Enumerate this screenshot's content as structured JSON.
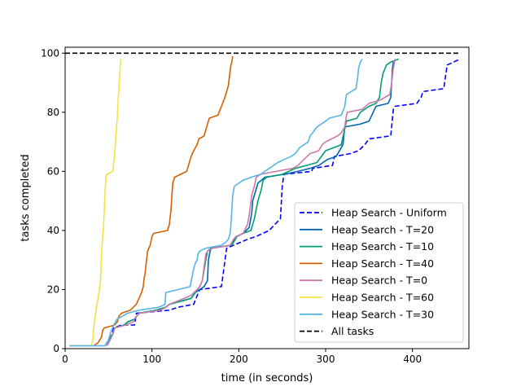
{
  "chart_data": {
    "type": "line",
    "xlabel": "time (in seconds)",
    "ylabel": "tasks completed",
    "xlim": [
      0,
      465
    ],
    "ylim": [
      0,
      102
    ],
    "xticks": [
      0,
      100,
      200,
      300,
      400
    ],
    "yticks": [
      0,
      20,
      40,
      60,
      80,
      100
    ],
    "grid": false,
    "legend_position": "lower-right",
    "series": [
      {
        "name": "Heap Search - Uniform",
        "color": "#0000ff",
        "dash": "dashed",
        "points": [
          [
            48,
            1
          ],
          [
            52,
            3
          ],
          [
            56,
            7
          ],
          [
            65,
            8
          ],
          [
            80,
            8
          ],
          [
            82,
            12
          ],
          [
            120,
            13
          ],
          [
            130,
            14
          ],
          [
            148,
            15
          ],
          [
            155,
            20
          ],
          [
            180,
            21
          ],
          [
            186,
            34
          ],
          [
            210,
            37
          ],
          [
            220,
            38
          ],
          [
            235,
            40
          ],
          [
            248,
            44
          ],
          [
            250,
            55
          ],
          [
            252,
            59
          ],
          [
            284,
            60
          ],
          [
            285,
            61
          ],
          [
            308,
            62
          ],
          [
            310,
            65
          ],
          [
            328,
            66
          ],
          [
            338,
            67
          ],
          [
            345,
            69
          ],
          [
            350,
            71
          ],
          [
            375,
            72
          ],
          [
            378,
            81
          ],
          [
            380,
            82
          ],
          [
            405,
            83
          ],
          [
            410,
            85
          ],
          [
            412,
            87
          ],
          [
            436,
            88
          ],
          [
            438,
            92
          ],
          [
            440,
            96
          ],
          [
            455,
            98
          ]
        ]
      },
      {
        "name": "Heap Search - T=20",
        "color": "#0066b3",
        "dash": "solid",
        "points": [
          [
            48,
            1
          ],
          [
            50,
            2
          ],
          [
            52,
            4
          ],
          [
            55,
            5
          ],
          [
            57,
            7
          ],
          [
            68,
            8
          ],
          [
            72,
            9
          ],
          [
            80,
            10
          ],
          [
            85,
            12
          ],
          [
            105,
            13
          ],
          [
            116,
            14
          ],
          [
            120,
            15
          ],
          [
            145,
            17
          ],
          [
            150,
            19
          ],
          [
            155,
            20
          ],
          [
            160,
            21
          ],
          [
            164,
            23
          ],
          [
            165,
            30
          ],
          [
            167,
            33
          ],
          [
            168,
            34
          ],
          [
            192,
            35
          ],
          [
            195,
            37
          ],
          [
            198,
            38
          ],
          [
            205,
            39
          ],
          [
            212,
            41
          ],
          [
            215,
            46
          ],
          [
            216,
            50
          ],
          [
            218,
            52
          ],
          [
            220,
            54
          ],
          [
            222,
            56
          ],
          [
            226,
            57
          ],
          [
            230,
            58
          ],
          [
            252,
            59
          ],
          [
            268,
            60
          ],
          [
            282,
            61
          ],
          [
            292,
            62
          ],
          [
            302,
            64
          ],
          [
            312,
            65
          ],
          [
            320,
            69
          ],
          [
            322,
            75
          ],
          [
            340,
            76
          ],
          [
            350,
            77
          ],
          [
            358,
            82
          ],
          [
            372,
            83
          ],
          [
            375,
            85
          ],
          [
            376,
            90
          ],
          [
            377,
            95
          ],
          [
            378,
            97
          ]
        ]
      },
      {
        "name": "Heap Search - T=10",
        "color": "#009e73",
        "dash": "solid",
        "points": [
          [
            46,
            1
          ],
          [
            48,
            2
          ],
          [
            52,
            4
          ],
          [
            55,
            5
          ],
          [
            57,
            7
          ],
          [
            68,
            8
          ],
          [
            72,
            9
          ],
          [
            80,
            10
          ],
          [
            85,
            12
          ],
          [
            105,
            13
          ],
          [
            116,
            14
          ],
          [
            120,
            15
          ],
          [
            145,
            17
          ],
          [
            155,
            21
          ],
          [
            158,
            23
          ],
          [
            162,
            30
          ],
          [
            164,
            33
          ],
          [
            168,
            34
          ],
          [
            192,
            35
          ],
          [
            196,
            37
          ],
          [
            198,
            38
          ],
          [
            205,
            39
          ],
          [
            214,
            40
          ],
          [
            218,
            44
          ],
          [
            222,
            50
          ],
          [
            226,
            54
          ],
          [
            228,
            57
          ],
          [
            232,
            58
          ],
          [
            250,
            59
          ],
          [
            265,
            61
          ],
          [
            278,
            62
          ],
          [
            290,
            63
          ],
          [
            300,
            67
          ],
          [
            318,
            69
          ],
          [
            324,
            77
          ],
          [
            336,
            78
          ],
          [
            340,
            80
          ],
          [
            350,
            82
          ],
          [
            358,
            83
          ],
          [
            362,
            85
          ],
          [
            364,
            90
          ],
          [
            366,
            93
          ],
          [
            370,
            96
          ],
          [
            375,
            97
          ],
          [
            384,
            98
          ]
        ]
      },
      {
        "name": "Heap Search - T=40",
        "color": "#d55e00",
        "dash": "solid",
        "points": [
          [
            33,
            1
          ],
          [
            38,
            2
          ],
          [
            40,
            3
          ],
          [
            42,
            4
          ],
          [
            43,
            6
          ],
          [
            45,
            7
          ],
          [
            57,
            8
          ],
          [
            60,
            9
          ],
          [
            62,
            11
          ],
          [
            65,
            12
          ],
          [
            75,
            13
          ],
          [
            82,
            15
          ],
          [
            88,
            19
          ],
          [
            90,
            21
          ],
          [
            91,
            24
          ],
          [
            92,
            25
          ],
          [
            93,
            28
          ],
          [
            95,
            33
          ],
          [
            98,
            35
          ],
          [
            100,
            38
          ],
          [
            102,
            39
          ],
          [
            118,
            40
          ],
          [
            120,
            42
          ],
          [
            122,
            47
          ],
          [
            123,
            52
          ],
          [
            124,
            56
          ],
          [
            126,
            58
          ],
          [
            140,
            60
          ],
          [
            142,
            62
          ],
          [
            145,
            65
          ],
          [
            148,
            67
          ],
          [
            152,
            69
          ],
          [
            154,
            71
          ],
          [
            160,
            72
          ],
          [
            162,
            74
          ],
          [
            164,
            76
          ],
          [
            166,
            78
          ],
          [
            176,
            79
          ],
          [
            180,
            82
          ],
          [
            184,
            85
          ],
          [
            186,
            87
          ],
          [
            188,
            89
          ],
          [
            190,
            94
          ],
          [
            191,
            96
          ],
          [
            192,
            97
          ],
          [
            193,
            99
          ]
        ]
      },
      {
        "name": "Heap Search - T=0",
        "color": "#cc79a7",
        "dash": "solid",
        "points": [
          [
            48,
            1
          ],
          [
            52,
            3
          ],
          [
            55,
            5
          ],
          [
            57,
            7
          ],
          [
            70,
            8
          ],
          [
            78,
            9
          ],
          [
            82,
            11
          ],
          [
            86,
            12
          ],
          [
            110,
            13
          ],
          [
            116,
            14
          ],
          [
            120,
            15
          ],
          [
            145,
            18
          ],
          [
            152,
            20
          ],
          [
            155,
            21
          ],
          [
            158,
            23
          ],
          [
            162,
            32
          ],
          [
            164,
            33
          ],
          [
            170,
            34
          ],
          [
            190,
            35
          ],
          [
            194,
            37
          ],
          [
            197,
            38
          ],
          [
            205,
            39
          ],
          [
            210,
            42
          ],
          [
            212,
            45
          ],
          [
            215,
            52
          ],
          [
            218,
            55
          ],
          [
            220,
            58
          ],
          [
            225,
            59
          ],
          [
            243,
            60
          ],
          [
            262,
            61
          ],
          [
            268,
            62
          ],
          [
            275,
            64
          ],
          [
            282,
            66
          ],
          [
            292,
            67
          ],
          [
            296,
            69
          ],
          [
            300,
            70
          ],
          [
            314,
            72
          ],
          [
            318,
            73
          ],
          [
            322,
            75
          ],
          [
            324,
            79
          ],
          [
            325,
            80
          ],
          [
            342,
            81
          ],
          [
            350,
            83
          ],
          [
            362,
            84
          ],
          [
            368,
            85
          ],
          [
            374,
            86
          ],
          [
            376,
            90
          ],
          [
            378,
            95
          ],
          [
            380,
            98
          ]
        ]
      },
      {
        "name": "Heap Search - T=60",
        "color": "#f0e442",
        "dash": "solid",
        "points": [
          [
            5,
            1
          ],
          [
            30,
            1
          ],
          [
            32,
            3
          ],
          [
            33,
            7
          ],
          [
            34,
            10
          ],
          [
            36,
            14
          ],
          [
            38,
            17
          ],
          [
            40,
            21
          ],
          [
            41,
            24
          ],
          [
            42,
            33
          ],
          [
            43,
            37
          ],
          [
            44,
            40
          ],
          [
            45,
            46
          ],
          [
            46,
            53
          ],
          [
            47,
            58
          ],
          [
            48,
            59
          ],
          [
            55,
            60
          ],
          [
            56,
            63
          ],
          [
            57,
            66
          ],
          [
            58,
            70
          ],
          [
            59,
            74
          ],
          [
            60,
            78
          ],
          [
            61,
            84
          ],
          [
            62,
            88
          ],
          [
            63,
            93
          ],
          [
            64,
            98
          ]
        ]
      },
      {
        "name": "Heap Search - T=30",
        "color": "#56b4e9",
        "dash": "solid",
        "points": [
          [
            5,
            1
          ],
          [
            46,
            1
          ],
          [
            50,
            3
          ],
          [
            53,
            6
          ],
          [
            56,
            8
          ],
          [
            60,
            10
          ],
          [
            66,
            11
          ],
          [
            72,
            12
          ],
          [
            85,
            13
          ],
          [
            108,
            14
          ],
          [
            115,
            15
          ],
          [
            116,
            19
          ],
          [
            130,
            20
          ],
          [
            144,
            21
          ],
          [
            146,
            24
          ],
          [
            148,
            27
          ],
          [
            150,
            29
          ],
          [
            152,
            30
          ],
          [
            153,
            32
          ],
          [
            155,
            33
          ],
          [
            162,
            34
          ],
          [
            180,
            35
          ],
          [
            185,
            36
          ],
          [
            188,
            37
          ],
          [
            190,
            39
          ],
          [
            191,
            42
          ],
          [
            192,
            47
          ],
          [
            193,
            52
          ],
          [
            195,
            55
          ],
          [
            200,
            56
          ],
          [
            205,
            57
          ],
          [
            214,
            58
          ],
          [
            225,
            59
          ],
          [
            235,
            61
          ],
          [
            240,
            62
          ],
          [
            245,
            63
          ],
          [
            252,
            64
          ],
          [
            260,
            65
          ],
          [
            265,
            66
          ],
          [
            270,
            68
          ],
          [
            280,
            70
          ],
          [
            282,
            72
          ],
          [
            285,
            73
          ],
          [
            290,
            75
          ],
          [
            300,
            77
          ],
          [
            304,
            78
          ],
          [
            318,
            79
          ],
          [
            322,
            82
          ],
          [
            324,
            86
          ],
          [
            335,
            88
          ],
          [
            337,
            92
          ],
          [
            338,
            95
          ],
          [
            340,
            97
          ],
          [
            342,
            98
          ]
        ]
      },
      {
        "name": "All tasks",
        "color": "#000000",
        "dash": "dashed",
        "points": [
          [
            0,
            100
          ],
          [
            455,
            100
          ]
        ]
      }
    ]
  }
}
